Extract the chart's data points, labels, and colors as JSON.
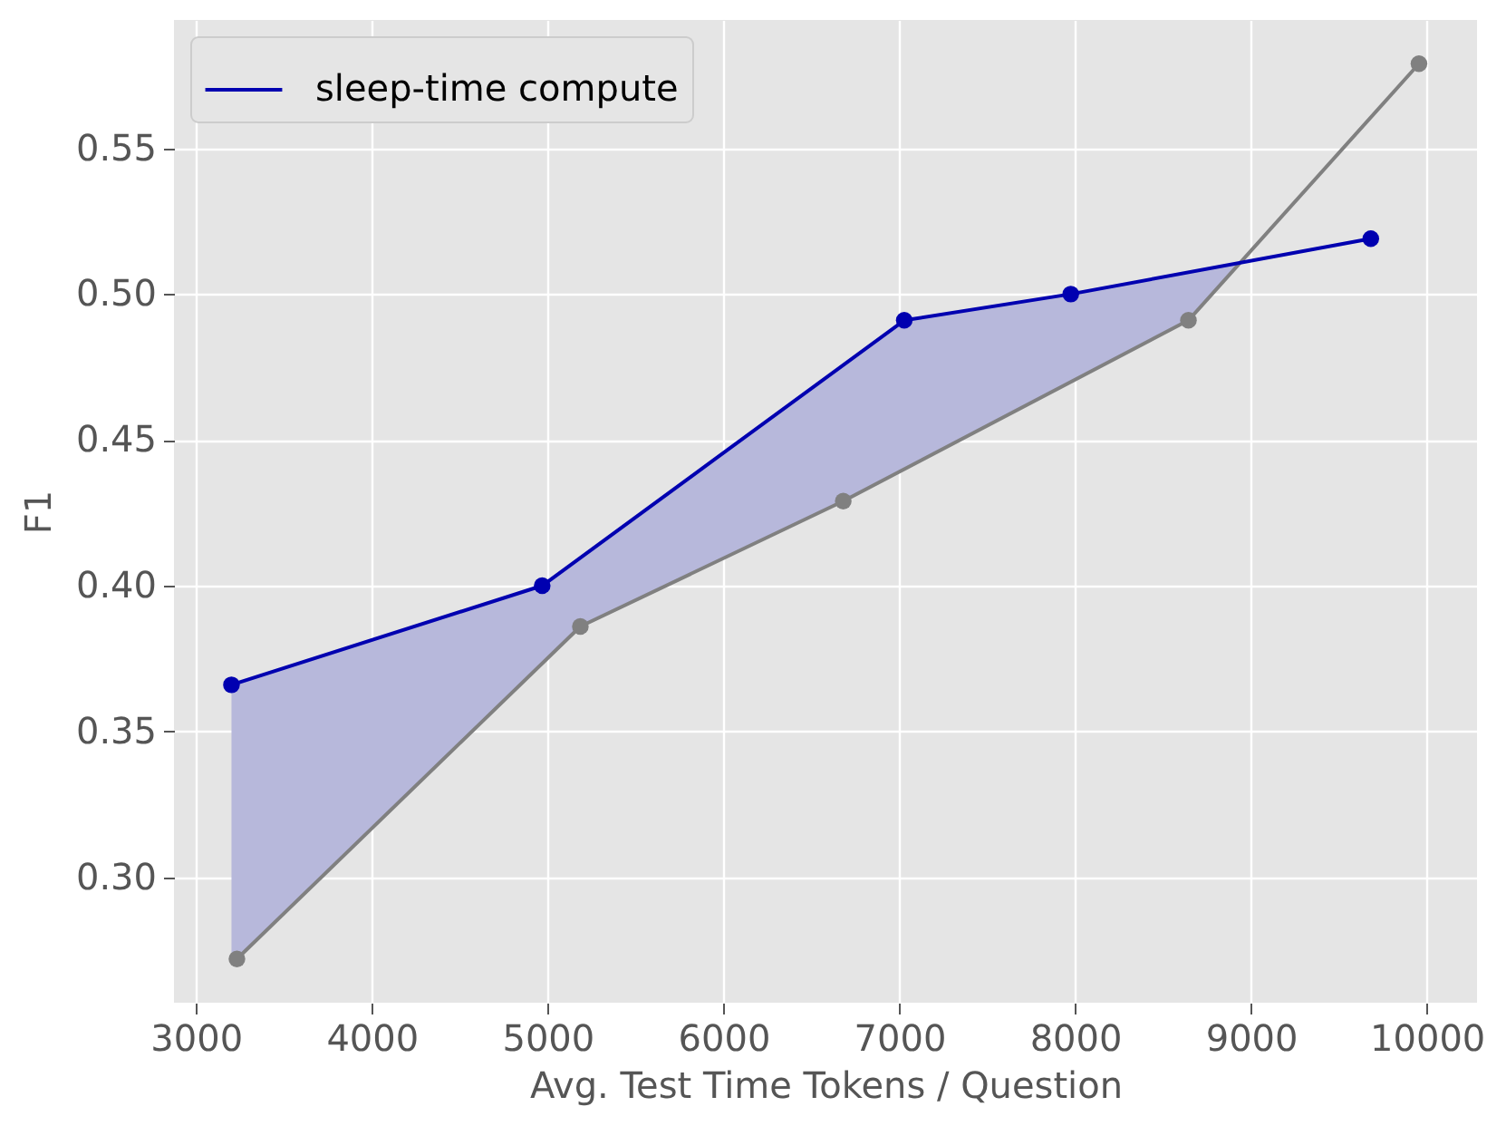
{
  "chart_data": {
    "type": "line",
    "xlabel": "Avg. Test Time Tokens / Question",
    "ylabel": "F1",
    "xlim": [
      2875,
      10285
    ],
    "ylim": [
      0.257,
      0.594
    ],
    "xticks": [
      3000,
      4000,
      5000,
      6000,
      7000,
      8000,
      9000,
      10000
    ],
    "yticks": [
      {
        "value": 0.3,
        "label": "0.30"
      },
      0.35,
      {
        "value": 0.4,
        "label": "0.40"
      },
      0.45,
      {
        "value": 0.5,
        "label": "0.50"
      },
      0.55
    ],
    "grid": true,
    "legend": "top left",
    "marker": "circle",
    "line_style": "solid",
    "series": [
      {
        "type": "area",
        "color": "#b7b8db",
        "x": [
          3202,
          3233,
          4969,
          5186,
          6681,
          7028,
          7975,
          8644,
          8938
        ],
        "values": [
          null,
          null,
          null,
          null,
          null,
          null,
          null,
          null,
          null
        ],
        "upper": [
          0.366,
          0.367,
          0.4,
          0.41,
          0.476,
          0.491,
          0.5,
          0.507,
          0.511
        ],
        "lower": [
          0.272,
          0.272,
          0.373,
          0.386,
          0.429,
          0.44,
          0.47,
          0.491,
          0.511
        ]
      },
      {
        "color": "#808080",
        "x": [
          3233,
          5186,
          6681,
          8644,
          9955
        ],
        "values": [
          0.272,
          0.386,
          0.429,
          0.491,
          0.579
        ]
      },
      {
        "name": "sleep-time compute",
        "color": "#0000b0",
        "x": [
          3202,
          4969,
          7028,
          7975,
          9681
        ],
        "values": [
          0.366,
          0.4,
          0.491,
          0.5,
          0.519
        ]
      }
    ]
  }
}
